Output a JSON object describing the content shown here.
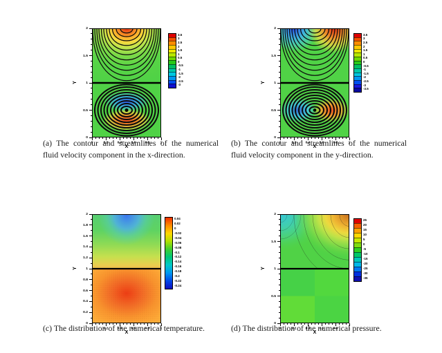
{
  "page": {
    "background": "#ffffff"
  },
  "palette": {
    "field_green": "#50d246",
    "streamline_black": "#0d0d0d",
    "caption_text": "#1a1a1a"
  },
  "figure": {
    "subfigures": [
      {
        "id": "a",
        "caption": "(a) The contour and streamlines of the numerical fluid velocity component in the x-direction.",
        "xlabel": "X",
        "ylabel": "Y",
        "x_range": [
          0,
          1
        ],
        "y_range": [
          0,
          2
        ],
        "x_ticks": [
          [
            0,
            "0"
          ],
          [
            0.2,
            "0.2"
          ],
          [
            0.4,
            "0.4"
          ],
          [
            0.6,
            "0.6"
          ],
          [
            0.8,
            "0.8"
          ],
          [
            1,
            "1"
          ]
        ],
        "y_ticks": [
          [
            0,
            "0"
          ],
          [
            0.5,
            "0.5"
          ],
          [
            1,
            "1"
          ],
          [
            1.5,
            "1.5"
          ],
          [
            2,
            "2"
          ]
        ],
        "x_minor_step": 0.05,
        "y_minor_step": 0.1,
        "colorbar": {
          "type": "discrete",
          "labels": [
            "3.5",
            "3",
            "2.5",
            "2",
            "1.5",
            "1",
            "0.5",
            "0",
            "-0.5",
            "-1",
            "-1.5",
            "-2",
            "-2.5",
            "-3"
          ],
          "colors": [
            "#e00000",
            "#f55000",
            "#ff8c00",
            "#ffc800",
            "#f0e800",
            "#b8e800",
            "#70d800",
            "#28c818",
            "#00c060",
            "#00c8a8",
            "#00c8e0",
            "#0098f0",
            "#0050f0",
            "#1010d0"
          ]
        }
      },
      {
        "id": "b",
        "caption": "(b) The contour and streamlines of the numerical fluid velocity component in the y-direction.",
        "xlabel": "X",
        "ylabel": "Y",
        "x_range": [
          0,
          1
        ],
        "y_range": [
          0,
          2
        ],
        "x_ticks": [
          [
            0,
            "0"
          ],
          [
            0.2,
            "0.2"
          ],
          [
            0.4,
            "0.4"
          ],
          [
            0.6,
            "0.6"
          ],
          [
            0.8,
            "0.8"
          ],
          [
            1,
            "1"
          ]
        ],
        "y_ticks": [
          [
            0,
            "0"
          ],
          [
            0.5,
            "0.5"
          ],
          [
            1,
            "1"
          ],
          [
            1.5,
            "1.5"
          ],
          [
            2,
            "2"
          ]
        ],
        "x_minor_step": 0.05,
        "y_minor_step": 0.1,
        "colorbar": {
          "type": "discrete",
          "labels": [
            "3.5",
            "3",
            "2.5",
            "2",
            "1.5",
            "1",
            "0.5",
            "0",
            "-0.5",
            "-1",
            "-1.5",
            "-2",
            "-2.5",
            "-3",
            "-3.5"
          ],
          "colors": [
            "#e00000",
            "#f55000",
            "#ff8c00",
            "#ffc800",
            "#f0e800",
            "#b8e800",
            "#70d800",
            "#28c818",
            "#00c060",
            "#00c8a8",
            "#00c8e0",
            "#0098f0",
            "#0050f0",
            "#1818e0",
            "#0808a0"
          ]
        }
      },
      {
        "id": "c",
        "caption": "(c) The distribution of the numerical temperature.",
        "xlabel": "X",
        "ylabel": "Y",
        "x_range": [
          0,
          1
        ],
        "y_range": [
          0,
          2
        ],
        "x_ticks": [
          [
            0,
            "0"
          ],
          [
            0.2,
            "0.2"
          ],
          [
            0.4,
            "0.4"
          ],
          [
            0.6,
            "0.6"
          ],
          [
            0.8,
            "0.8"
          ],
          [
            1,
            "1"
          ]
        ],
        "y_ticks": [
          [
            0,
            "0"
          ],
          [
            0.2,
            "0.2"
          ],
          [
            0.4,
            "0.4"
          ],
          [
            0.6,
            "0.6"
          ],
          [
            0.8,
            "0.8"
          ],
          [
            1,
            "1"
          ],
          [
            1.2,
            "1.2"
          ],
          [
            1.4,
            "1.4"
          ],
          [
            1.6,
            "1.6"
          ],
          [
            1.8,
            "1.8"
          ],
          [
            2,
            "2"
          ]
        ],
        "x_minor_step": 0.05,
        "y_minor_step": 0.1,
        "colorbar": {
          "type": "continuous",
          "labels": [
            "0.04",
            "0.02",
            "0",
            "-0.02",
            "-0.04",
            "-0.06",
            "-0.08",
            "-0.1",
            "-0.12",
            "-0.14",
            "-0.16",
            "-0.18",
            "-0.2",
            "-0.22",
            "-0.24"
          ],
          "colors": [
            "#f03000",
            "#ff8c00",
            "#ffd800",
            "#b0e000",
            "#40d030",
            "#00c878",
            "#00c8c8",
            "#0098f0",
            "#0048e8",
            "#1010c0"
          ]
        }
      },
      {
        "id": "d",
        "caption": "(d) The distribution of the numerical pressure.",
        "xlabel": "X",
        "ylabel": "Y",
        "x_range": [
          0,
          1
        ],
        "y_range": [
          0,
          2
        ],
        "x_ticks": [
          [
            0,
            "0"
          ],
          [
            0.2,
            "0.2"
          ],
          [
            0.4,
            "0.4"
          ],
          [
            0.6,
            "0.6"
          ],
          [
            0.8,
            "0.8"
          ],
          [
            1,
            "1"
          ]
        ],
        "y_ticks": [
          [
            0,
            "0"
          ],
          [
            0.5,
            "0.5"
          ],
          [
            1,
            "1"
          ],
          [
            1.5,
            "1.5"
          ],
          [
            2,
            "2"
          ]
        ],
        "x_minor_step": 0.05,
        "y_minor_step": 0.1,
        "colorbar": {
          "type": "discrete",
          "labels": [
            "25",
            "20",
            "15",
            "10",
            "5",
            "0",
            "-5",
            "-10",
            "-15",
            "-20",
            "-25",
            "-30",
            "-35"
          ],
          "colors": [
            "#e00000",
            "#f56000",
            "#ffa000",
            "#ffd800",
            "#c8e800",
            "#80dc10",
            "#30d020",
            "#00c868",
            "#00c8b8",
            "#00b8e8",
            "#0078f0",
            "#0030e0",
            "#1010b0"
          ]
        }
      }
    ]
  },
  "chart_data": [
    {
      "type": "heatmap",
      "subtype": "contour-with-streamlines",
      "id": "a",
      "title": "(a) The contour and streamlines of the numerical fluid velocity component in the x-direction.",
      "xlabel": "X",
      "ylabel": "Y",
      "xlim": [
        0,
        1
      ],
      "ylim": [
        0,
        2
      ],
      "colorbar_levels": [
        3.5,
        3,
        2.5,
        2,
        1.5,
        1,
        0.5,
        0,
        -0.5,
        -1,
        -1.5,
        -2,
        -2.5,
        -3
      ],
      "legend_position": "right",
      "description": "Upper cavity (1<y<2): nested open streamline arcs hanging from the top lid; maximum x-velocity (~3.5, red) at the top boundary near x=0.5, green (~0) elsewhere. Lower cavity (0<y<1): closed vortex of concentric streamlines centered at (0.5,0.5); negative band (blue, ~-2) above the vortex center, positive band (orange/red, ~2.5) below it. Solid interface line at y=1."
    },
    {
      "type": "heatmap",
      "subtype": "contour-with-streamlines",
      "id": "b",
      "title": "(b) The contour and streamlines of the numerical fluid velocity component in the y-direction.",
      "xlabel": "X",
      "ylabel": "Y",
      "xlim": [
        0,
        1
      ],
      "ylim": [
        0,
        2
      ],
      "colorbar_levels": [
        3.5,
        3,
        2.5,
        2,
        1.5,
        1,
        0.5,
        0,
        -0.5,
        -1,
        -1.5,
        -2,
        -2.5,
        -3,
        -3.5
      ],
      "legend_position": "right",
      "description": "Upper cavity: nested open streamline arcs; negative y-velocity (blue, ~-3) near top-left corner and positive (red, ~3.5) near top-right corner. Lower cavity: closed vortex centered at (0.5,0.5) with negative band (cyan/blue) left of center and positive band (orange) right of center. Solid interface line at y=1."
    },
    {
      "type": "heatmap",
      "subtype": "contour",
      "id": "c",
      "title": "(c) The distribution of the numerical temperature.",
      "xlabel": "X",
      "ylabel": "Y",
      "xlim": [
        0,
        1
      ],
      "ylim": [
        0,
        2
      ],
      "colorbar_levels": [
        0.04,
        0.02,
        0,
        -0.02,
        -0.04,
        -0.06,
        -0.08,
        -0.1,
        -0.12,
        -0.14,
        -0.16,
        -0.18,
        -0.2,
        -0.22,
        -0.24
      ],
      "legend_position": "right",
      "description": "Smooth temperature field. Minimum (~-0.24, blue) at the center of the top boundary, grading through green/yellow toward the interface. Lower cavity is warm (orange) with the maximum (~0.04, red) centered near (0.5,0.5); stippled mesh-point texture visible. Solid interface line at y=1."
    },
    {
      "type": "heatmap",
      "subtype": "contour",
      "id": "d",
      "title": "(d) The distribution of the numerical pressure.",
      "xlabel": "X",
      "ylabel": "Y",
      "xlim": [
        0,
        1
      ],
      "ylim": [
        0,
        2
      ],
      "colorbar_levels": [
        25,
        20,
        15,
        10,
        5,
        0,
        -5,
        -10,
        -15,
        -20,
        -25,
        -30,
        -35
      ],
      "legend_position": "right",
      "description": "Upper cavity: low pressure (cyan, ~-15/-20) at the top-left corner and high pressure (orange/brown, ~25) at the top-right corner with curved contour bands; near-zero (green) in between. Lower cavity: nearly uniform green (~0) with a faint four-quadrant checkerboard pattern split at x=0.5 and y=0.5. Solid interface line at y=1."
    }
  ]
}
